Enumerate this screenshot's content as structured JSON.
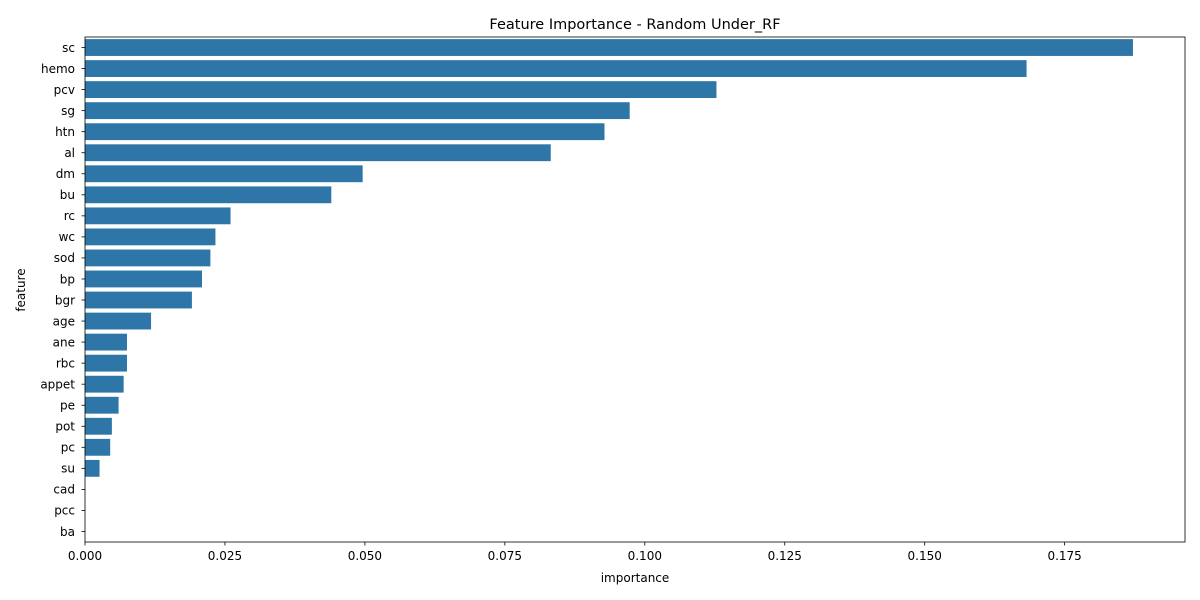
{
  "chart_data": {
    "type": "bar",
    "orientation": "horizontal",
    "title": "Feature Importance - Random Under_RF",
    "xlabel": "importance",
    "ylabel": "feature",
    "categories": [
      "sc",
      "hemo",
      "pcv",
      "sg",
      "htn",
      "al",
      "dm",
      "bu",
      "rc",
      "wc",
      "sod",
      "bp",
      "bgr",
      "age",
      "ane",
      "rbc",
      "appet",
      "pe",
      "pot",
      "pc",
      "su",
      "cad",
      "pcc",
      "ba"
    ],
    "values": [
      0.1872,
      0.1682,
      0.1128,
      0.0973,
      0.0928,
      0.0832,
      0.0496,
      0.044,
      0.026,
      0.0233,
      0.0224,
      0.0209,
      0.0191,
      0.0118,
      0.0075,
      0.0075,
      0.0069,
      0.006,
      0.0048,
      0.0045,
      0.0026,
      0.0,
      0.0,
      0.0
    ],
    "xlim": [
      0,
      0.1965
    ],
    "xticks": [
      "0.000",
      "0.025",
      "0.050",
      "0.075",
      "0.100",
      "0.125",
      "0.150",
      "0.175"
    ],
    "xtick_values": [
      0,
      0.025,
      0.05,
      0.075,
      0.1,
      0.125,
      0.15,
      0.175
    ],
    "bar_color": "#2e75a8",
    "grid": false,
    "legend": "none"
  }
}
